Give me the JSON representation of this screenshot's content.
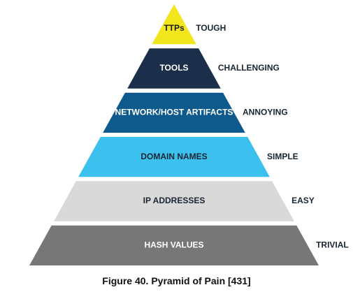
{
  "pyramid": {
    "tiers": [
      {
        "label": "TTPs",
        "difficulty": "TOUGH",
        "fill": "#f2e61c",
        "text_color": "#1a1a1a"
      },
      {
        "label": "TOOLS",
        "difficulty": "CHALLENGING",
        "fill": "#1b2f4a",
        "text_color": "#ffffff"
      },
      {
        "label": "NETWORK/HOST ARTIFACTS",
        "difficulty": "ANNOYING",
        "fill": "#0f5a8c",
        "text_color": "#ffffff"
      },
      {
        "label": "DOMAIN NAMES",
        "difficulty": "SIMPLE",
        "fill": "#3cc0ee",
        "text_color": "#1a2533"
      },
      {
        "label": "IP ADDRESSES",
        "difficulty": "EASY",
        "fill": "#d9d9d9",
        "text_color": "#1a2533"
      },
      {
        "label": "HASH VALUES",
        "difficulty": "TRIVIAL",
        "fill": "#777777",
        "text_color": "#ffffff"
      }
    ]
  },
  "caption": "Figure 40. Pyramid of Pain [431]"
}
